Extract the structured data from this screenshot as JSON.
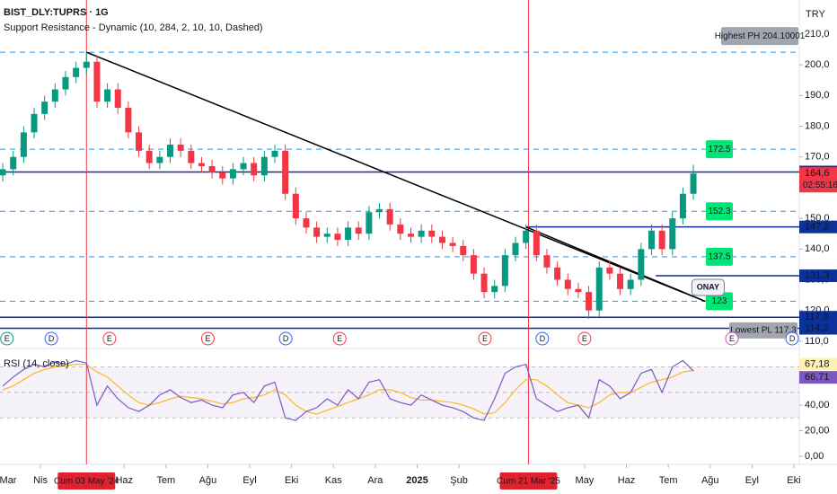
{
  "chart_data": {
    "type": "candlestick",
    "symbol": "BIST_DLY:TUPRS · 1G",
    "indicator": "Support Resistance - Dynamic (10, 284, 2, 10, 10, Dashed)",
    "currency": "TRY",
    "up_color": "#089981",
    "down_color": "#f23645",
    "t": [
      0.1,
      0.35,
      0.6,
      0.85,
      1.1,
      1.35,
      1.6,
      1.85,
      2.1,
      2.35,
      2.6,
      2.85,
      3.1,
      3.35,
      3.6,
      3.85,
      4.1,
      4.35,
      4.6,
      4.85,
      5.1,
      5.35,
      5.6,
      5.85,
      6.1,
      6.35,
      6.6,
      6.85,
      7.1,
      7.35,
      7.6,
      7.85,
      8.1,
      8.35,
      8.6,
      8.85,
      9.1,
      9.35,
      9.6,
      9.85,
      10.1,
      10.35,
      10.6,
      10.85,
      11.1,
      11.35,
      11.6,
      11.85,
      12.1,
      12.35,
      12.6,
      12.85,
      13.1,
      13.35,
      13.6,
      13.85,
      14.1,
      14.35,
      14.6,
      14.85,
      15.1,
      15.35,
      15.6,
      15.85,
      16.1,
      16.35,
      16.6
    ],
    "open": [
      164,
      166,
      170,
      178,
      184,
      188,
      192,
      196,
      199,
      201,
      188,
      192,
      186,
      178,
      172,
      168,
      170,
      174,
      172,
      168,
      167,
      165,
      163,
      166,
      168,
      164,
      170,
      172,
      158,
      150,
      147,
      144,
      145,
      143,
      147,
      145,
      152,
      153,
      148,
      145,
      144,
      146,
      144,
      142,
      141,
      138,
      132,
      126,
      128,
      138,
      142,
      146,
      138,
      134,
      130,
      127,
      126,
      120,
      134,
      132,
      127,
      130,
      140,
      146,
      140,
      150,
      158
    ],
    "high": [
      168,
      172,
      180,
      186,
      190,
      194,
      198,
      201,
      204.1,
      203,
      194,
      194,
      188,
      180,
      174,
      172,
      176,
      176,
      174,
      170,
      169,
      167,
      168,
      170,
      170,
      172,
      174,
      174,
      160,
      152,
      149,
      147,
      147,
      149,
      149,
      154,
      155,
      155,
      150,
      147,
      148,
      148,
      146,
      144,
      143,
      140,
      134,
      130,
      140,
      144,
      148,
      148,
      140,
      136,
      132,
      129,
      128,
      136,
      136,
      134,
      132,
      142,
      148,
      148,
      152,
      160,
      167.5
    ],
    "low": [
      162,
      164,
      168,
      176,
      182,
      186,
      190,
      194,
      197,
      186,
      186,
      184,
      176,
      170,
      166,
      166,
      168,
      170,
      166,
      165,
      163,
      161,
      161,
      164,
      162,
      162,
      168,
      156,
      148,
      145,
      142,
      142,
      141,
      141,
      143,
      143,
      150,
      146,
      143,
      142,
      142,
      142,
      140,
      139,
      136,
      130,
      124,
      124,
      126,
      136,
      140,
      136,
      132,
      128,
      125,
      124,
      117.3,
      118,
      130,
      125,
      125,
      128,
      138,
      138,
      138,
      148,
      156
    ],
    "close": [
      166,
      170,
      178,
      184,
      188,
      192,
      196,
      199,
      201,
      188,
      192,
      186,
      178,
      172,
      168,
      170,
      174,
      172,
      168,
      167,
      165,
      163,
      166,
      168,
      164,
      170,
      172,
      158,
      150,
      147,
      144,
      145,
      143,
      147,
      145,
      152,
      153,
      148,
      145,
      144,
      146,
      144,
      142,
      141,
      138,
      132,
      126,
      128,
      138,
      142,
      146,
      138,
      134,
      130,
      127,
      126,
      120,
      134,
      132,
      127,
      130,
      140,
      146,
      140,
      150,
      158,
      164.6
    ],
    "xlim": [
      0.034,
      19.13
    ],
    "xticks": [
      {
        "value": 0,
        "label": "Mar"
      },
      {
        "value": 1,
        "label": "Nis"
      },
      {
        "value": 3,
        "label": "Haz"
      },
      {
        "value": 4,
        "label": "Tem"
      },
      {
        "value": 5,
        "label": "Ağu"
      },
      {
        "value": 6,
        "label": "Eyl"
      },
      {
        "value": 7,
        "label": "Eki"
      },
      {
        "value": 8,
        "label": "Kas"
      },
      {
        "value": 9,
        "label": "Ara"
      },
      {
        "value": 10,
        "label": "2025"
      },
      {
        "value": 11,
        "label": "Şub"
      },
      {
        "value": 14,
        "label": "May"
      },
      {
        "value": 15,
        "label": "Haz"
      },
      {
        "value": 16,
        "label": "Tem"
      },
      {
        "value": 17,
        "label": "Ağu"
      },
      {
        "value": 18,
        "label": "Eyl"
      },
      {
        "value": 19,
        "label": "Eki"
      }
    ],
    "highlighted_dates": [
      {
        "value": 2.1,
        "label": "Cum 03 May '24"
      },
      {
        "value": 12.66,
        "label": "Cum 21 Mar '25"
      }
    ],
    "ylim": [
      108.5,
      221.1
    ],
    "yticks": [
      {
        "value": 110,
        "label": "110,0"
      },
      {
        "value": 120,
        "label": "120,0"
      },
      {
        "value": 130,
        "label": "130,0"
      },
      {
        "value": 140,
        "label": "140,0"
      },
      {
        "value": 150,
        "label": "150,0"
      },
      {
        "value": 160,
        "label": "160,0"
      },
      {
        "value": 170,
        "label": "170,0"
      },
      {
        "value": 180,
        "label": "180,0"
      },
      {
        "value": 190,
        "label": "190,0"
      },
      {
        "value": 200,
        "label": "200,0"
      },
      {
        "value": 210,
        "label": "210,0"
      }
    ],
    "price_lines": [
      {
        "value": 165.1,
        "label": "165,1"
      },
      {
        "value": 147.2,
        "label": "147,2",
        "from": 12.6
      },
      {
        "value": 131.3,
        "label": "131,3",
        "from": 15.7
      },
      {
        "value": 117.8,
        "label": "117,8"
      },
      {
        "value": 114.2,
        "label": "114,2"
      }
    ],
    "last_price": {
      "value": 164.6,
      "label": "164,6",
      "countdown": "02:55:16"
    },
    "levels": [
      {
        "value": 204.1,
        "label": "Highest PH 204.10001"
      },
      {
        "value": 172.5,
        "label": "172.5"
      },
      {
        "value": 152.3,
        "label": "152.3"
      },
      {
        "value": 137.5,
        "label": "137.5"
      },
      {
        "value": 123,
        "label": "123"
      }
    ],
    "lowest": {
      "value": 117.3,
      "label": "Lowest PL 117.3"
    },
    "annotation": {
      "t": 16.95,
      "value": 127.5,
      "label": "ONAY"
    },
    "trendlines": [
      {
        "points": [
          [
            2.1,
            204.1
          ],
          [
            16.88,
            123
          ]
        ]
      },
      {
        "points": [
          [
            12.6,
            147.2
          ],
          [
            16.88,
            123
          ]
        ]
      }
    ],
    "events": [
      {
        "t": 0.2,
        "label": "E",
        "color": "#089981"
      },
      {
        "t": 1.26,
        "label": "D",
        "color": "#2962ff"
      },
      {
        "t": 2.65,
        "label": "E",
        "color": "#f23645"
      },
      {
        "t": 5.0,
        "label": "E",
        "color": "#f23645"
      },
      {
        "t": 6.86,
        "label": "D",
        "color": "#2962ff"
      },
      {
        "t": 8.15,
        "label": "E",
        "color": "#f23645"
      },
      {
        "t": 11.62,
        "label": "E",
        "color": "#f23645"
      },
      {
        "t": 12.99,
        "label": "D",
        "color": "#2962ff"
      },
      {
        "t": 14.0,
        "label": "E",
        "color": "#f23645"
      },
      {
        "t": 17.52,
        "label": "E",
        "color": "#c850c0"
      },
      {
        "t": 18.96,
        "label": "D",
        "color": "#2962ff"
      }
    ],
    "rsi": {
      "title": "RSI (14, close)",
      "color": "#7e57c2",
      "ma_color": "#f7b924",
      "values": [
        55,
        62,
        68,
        72,
        70,
        74,
        72,
        75,
        73,
        40,
        55,
        45,
        38,
        35,
        40,
        48,
        52,
        46,
        42,
        44,
        40,
        38,
        48,
        50,
        42,
        55,
        58,
        30,
        28,
        35,
        38,
        45,
        40,
        52,
        45,
        58,
        60,
        45,
        42,
        40,
        48,
        44,
        40,
        38,
        35,
        30,
        28,
        45,
        65,
        70,
        72,
        45,
        40,
        35,
        38,
        40,
        30,
        60,
        55,
        45,
        50,
        65,
        68,
        50,
        70,
        75,
        66.71
      ],
      "ma_values": [
        52,
        55,
        60,
        65,
        68,
        70,
        71,
        72,
        72,
        66,
        62,
        55,
        48,
        42,
        40,
        42,
        45,
        47,
        46,
        45,
        43,
        41,
        42,
        45,
        46,
        48,
        52,
        48,
        40,
        35,
        33,
        36,
        39,
        42,
        45,
        48,
        52,
        52,
        50,
        46,
        44,
        44,
        43,
        42,
        40,
        37,
        33,
        34,
        42,
        52,
        60,
        60,
        55,
        48,
        42,
        40,
        38,
        42,
        48,
        50,
        50,
        54,
        58,
        60,
        62,
        66,
        67.18
      ],
      "last_label": "66,71",
      "ma_last_label": "67,18",
      "ylim": [
        -5,
        83
      ],
      "yticks": [
        {
          "value": 0,
          "label": "0,00"
        },
        {
          "value": 20,
          "label": "20,00"
        },
        {
          "value": 40,
          "label": "40,00"
        },
        {
          "value": 60,
          "label": "60,00"
        }
      ],
      "levels": [
        70,
        50,
        30
      ]
    }
  }
}
